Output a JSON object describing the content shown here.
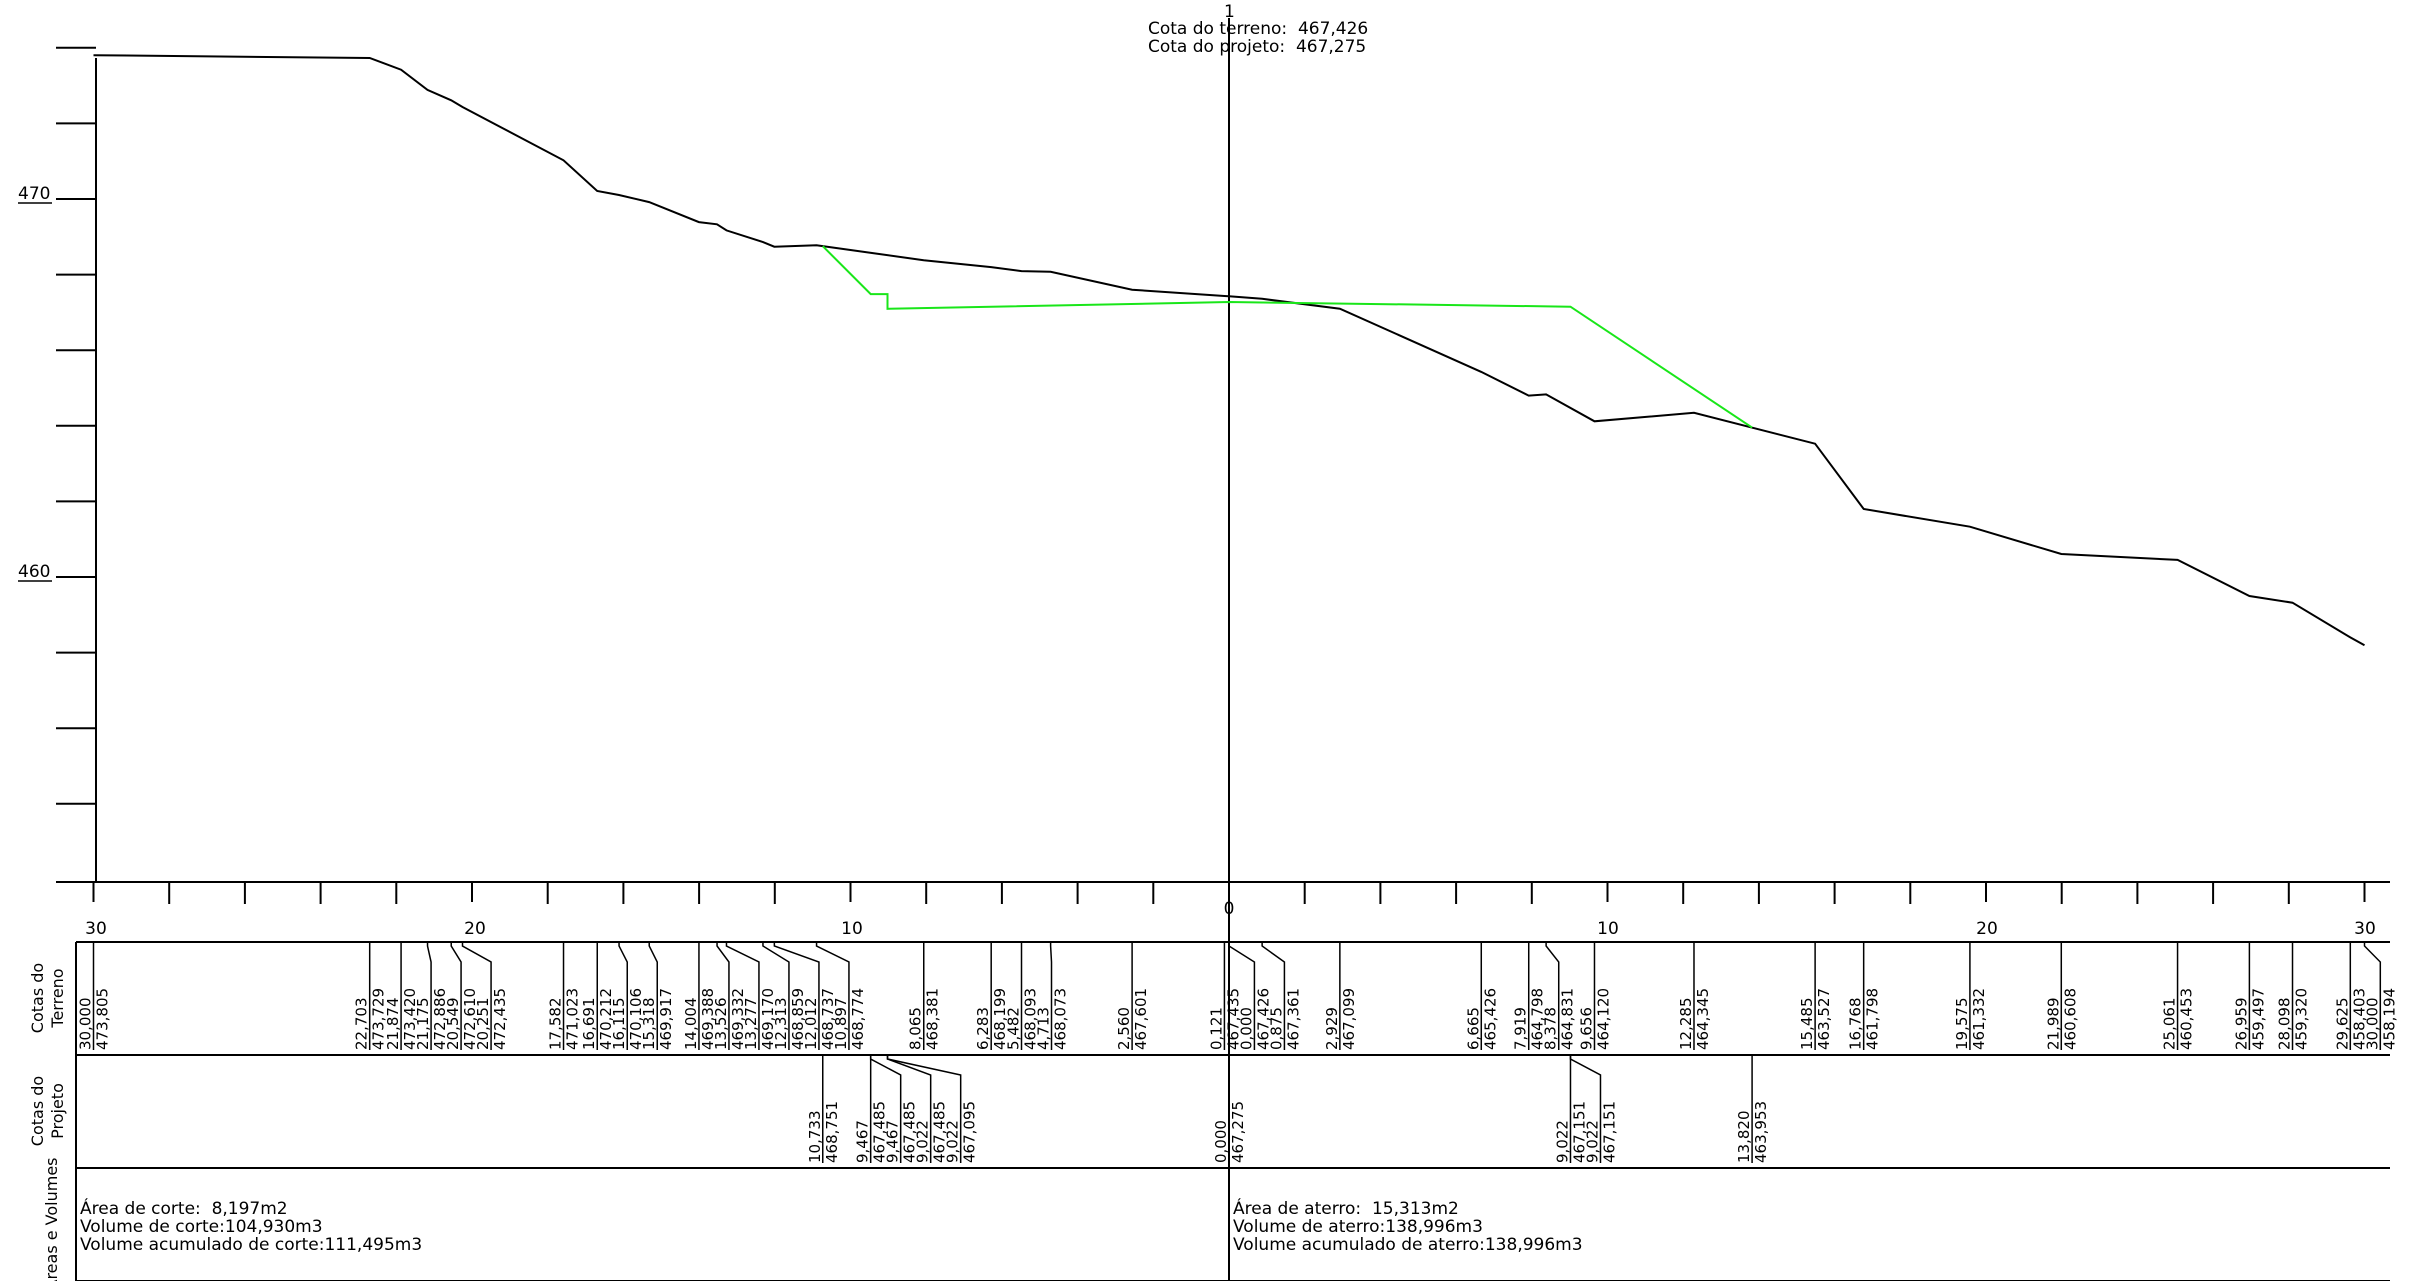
{
  "section_header": {
    "number": "1",
    "terrain_line": "Cota do terreno:  467,426",
    "project_line": "Cota do projeto:  467,275"
  },
  "y_axis_labels": [
    "470",
    "460"
  ],
  "x_axis_labels": [
    "30",
    "20",
    "10",
    "0",
    "10",
    "20",
    "30"
  ],
  "band_titles": {
    "terrain": [
      "Cotas do",
      "Terreno"
    ],
    "project": [
      "Cotas do",
      "Projeto"
    ],
    "areas": [
      "Áreas e Volumes"
    ]
  },
  "colors": {
    "terrain_line": "#000000",
    "project_line": "#19e619"
  },
  "terrain_stations": [
    {
      "d": "30,000",
      "z": "473,805"
    },
    {
      "d": "22,703",
      "z": "473,729"
    },
    {
      "d": "21,874",
      "z": "473,420"
    },
    {
      "d": "21,175",
      "z": "472,886"
    },
    {
      "d": "20,549",
      "z": "472,610"
    },
    {
      "d": "20,251",
      "z": "472,435"
    },
    {
      "d": "17,582",
      "z": "471,023"
    },
    {
      "d": "16,691",
      "z": "470,212"
    },
    {
      "d": "16,115",
      "z": "470,106"
    },
    {
      "d": "15,318",
      "z": "469,917"
    },
    {
      "d": "14,004",
      "z": "469,388"
    },
    {
      "d": "13,526",
      "z": "469,332"
    },
    {
      "d": "13,277",
      "z": "469,170"
    },
    {
      "d": "12,313",
      "z": "468,859"
    },
    {
      "d": "12,012",
      "z": "468,737"
    },
    {
      "d": "10,897",
      "z": "468,774"
    },
    {
      "d": "8,065",
      "z": "468,381"
    },
    {
      "d": "6,283",
      "z": "468,199"
    },
    {
      "d": "5,482",
      "z": "468,093"
    },
    {
      "d": "4,713",
      "z": "468,073"
    },
    {
      "d": "2,560",
      "z": "467,601"
    },
    {
      "d": "0,121",
      "z": "467,435"
    },
    {
      "d": "0,000",
      "z": "467,426"
    },
    {
      "d": "0,875",
      "z": "467,361"
    },
    {
      "d": "2,929",
      "z": "467,099"
    },
    {
      "d": "6,665",
      "z": "465,426"
    },
    {
      "d": "7,919",
      "z": "464,798"
    },
    {
      "d": "8,378",
      "z": "464,831"
    },
    {
      "d": "9,656",
      "z": "464,120"
    },
    {
      "d": "12,285",
      "z": "464,345"
    },
    {
      "d": "15,485",
      "z": "463,527"
    },
    {
      "d": "16,768",
      "z": "461,798"
    },
    {
      "d": "19,575",
      "z": "461,332"
    },
    {
      "d": "21,989",
      "z": "460,608"
    },
    {
      "d": "25,061",
      "z": "460,453"
    },
    {
      "d": "26,959",
      "z": "459,497"
    },
    {
      "d": "28,098",
      "z": "459,320"
    },
    {
      "d": "29,625",
      "z": "458,403"
    },
    {
      "d": "30,000",
      "z": "458,194"
    }
  ],
  "project_stations": [
    {
      "d": "10,733",
      "z": "468,751"
    },
    {
      "d": "9,467",
      "z": "467,485"
    },
    {
      "d": "9,467",
      "z": "467,485"
    },
    {
      "d": "9,022",
      "z": "467,485"
    },
    {
      "d": "9,022",
      "z": "467,095"
    },
    {
      "d": "0,000",
      "z": "467,275"
    },
    {
      "d": "9,022",
      "z": "467,151"
    },
    {
      "d": "9,022",
      "z": "467,151"
    },
    {
      "d": "13,820",
      "z": "463,953"
    }
  ],
  "areas_volumes": {
    "left": {
      "line1": "Área de corte:  8,197m2",
      "line2": "Volume de corte:104,930m3",
      "line3": "Volume acumulado de corte:111,495m3"
    },
    "right": {
      "line1": "Área de aterro:  15,313m2",
      "line2": "Volume de aterro:138,996m3",
      "line3": "Volume acumulado de aterro:138,996m3"
    }
  },
  "chart_data": {
    "type": "line",
    "x_axis": "offset from centerline (left side negative)",
    "ylim": [
      452.0,
      475.0
    ],
    "xlim": [
      -30.0,
      30.0
    ],
    "series": [
      {
        "name": "",
        "color": "#000000",
        "points": [
          [
            -30.0,
            473.805
          ],
          [
            -22.703,
            473.729
          ],
          [
            -21.874,
            473.42
          ],
          [
            -21.175,
            472.886
          ],
          [
            -20.549,
            472.61
          ],
          [
            -20.251,
            472.435
          ],
          [
            -17.582,
            471.023
          ],
          [
            -16.691,
            470.212
          ],
          [
            -16.115,
            470.106
          ],
          [
            -15.318,
            469.917
          ],
          [
            -14.004,
            469.388
          ],
          [
            -13.526,
            469.332
          ],
          [
            -13.277,
            469.17
          ],
          [
            -12.313,
            468.859
          ],
          [
            -12.012,
            468.737
          ],
          [
            -10.897,
            468.774
          ],
          [
            -8.065,
            468.381
          ],
          [
            -6.283,
            468.199
          ],
          [
            -5.482,
            468.093
          ],
          [
            -4.713,
            468.073
          ],
          [
            -2.56,
            467.601
          ],
          [
            -0.121,
            467.435
          ],
          [
            0.0,
            467.426
          ],
          [
            0.875,
            467.361
          ],
          [
            2.929,
            467.099
          ],
          [
            6.665,
            465.426
          ],
          [
            7.919,
            464.798
          ],
          [
            8.378,
            464.831
          ],
          [
            9.656,
            464.12
          ],
          [
            12.285,
            464.345
          ],
          [
            15.485,
            463.527
          ],
          [
            16.768,
            461.798
          ],
          [
            19.575,
            461.332
          ],
          [
            21.989,
            460.608
          ],
          [
            25.061,
            460.453
          ],
          [
            26.959,
            459.497
          ],
          [
            28.098,
            459.32
          ],
          [
            29.625,
            458.403
          ],
          [
            30.0,
            458.194
          ]
        ]
      },
      {
        "name": "",
        "color": "#19e619",
        "points": [
          [
            -10.733,
            468.751
          ],
          [
            -9.467,
            467.485
          ],
          [
            -9.022,
            467.485
          ],
          [
            -9.022,
            467.095
          ],
          [
            0.0,
            467.275
          ],
          [
            9.022,
            467.151
          ],
          [
            13.82,
            463.953
          ]
        ]
      }
    ]
  }
}
